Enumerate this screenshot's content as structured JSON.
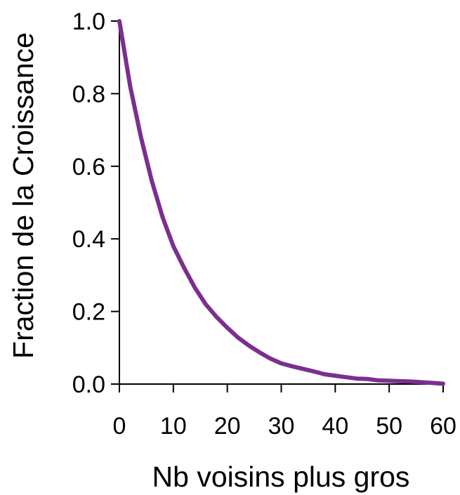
{
  "chart_data": {
    "type": "line",
    "title": "",
    "xlabel": "Nb voisins plus gros",
    "ylabel": "Fraction de la Croissance",
    "xlim": [
      0,
      60
    ],
    "ylim": [
      0,
      1
    ],
    "xticks": [
      0,
      10,
      20,
      30,
      40,
      50,
      60
    ],
    "yticks": [
      0.0,
      0.2,
      0.4,
      0.6,
      0.8,
      1.0
    ],
    "xtick_labels": [
      "0",
      "10",
      "20",
      "30",
      "40",
      "50",
      "60"
    ],
    "ytick_labels": [
      "0.0",
      "0.2",
      "0.4",
      "0.6",
      "0.8",
      "1.0"
    ],
    "grid": false,
    "series": [
      {
        "color": "#7b2f8e",
        "x": [
          0,
          1,
          2,
          3,
          4,
          5,
          6,
          7,
          8,
          9,
          10,
          12,
          14,
          16,
          18,
          20,
          22,
          24,
          26,
          28,
          30,
          32,
          34,
          36,
          38,
          40,
          42,
          44,
          46,
          48,
          50,
          52,
          54,
          56,
          58,
          60
        ],
        "y": [
          1.0,
          0.91,
          0.82,
          0.75,
          0.68,
          0.62,
          0.56,
          0.51,
          0.46,
          0.42,
          0.38,
          0.32,
          0.265,
          0.22,
          0.185,
          0.155,
          0.128,
          0.106,
          0.087,
          0.07,
          0.057,
          0.049,
          0.042,
          0.035,
          0.027,
          0.023,
          0.019,
          0.015,
          0.014,
          0.01,
          0.009,
          0.008,
          0.007,
          0.005,
          0.003,
          0.001
        ]
      }
    ]
  }
}
